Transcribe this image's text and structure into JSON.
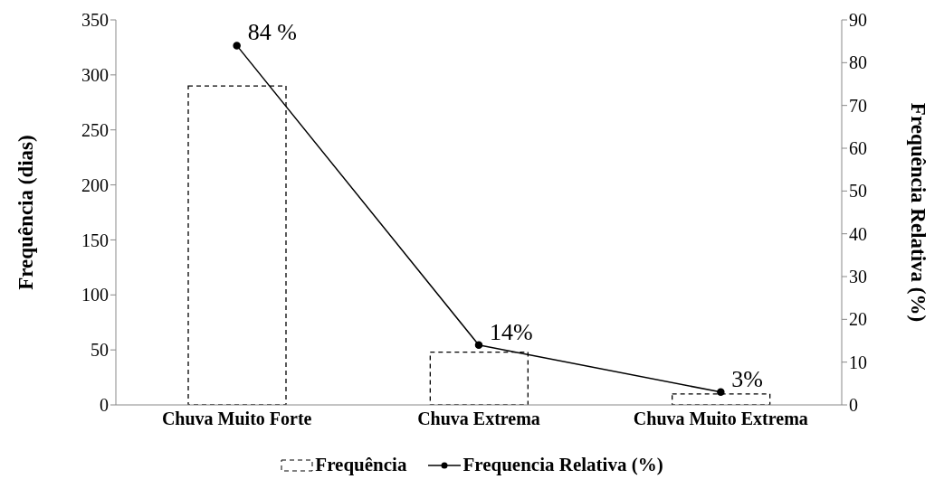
{
  "chart_data": {
    "type": "bar",
    "categories": [
      "Chuva Muito Forte",
      "Chuva Extrema",
      "Chuva Muito Extrema"
    ],
    "series": [
      {
        "name": "Frequência",
        "color": "#000000",
        "line_style": "dashed",
        "values": [
          290,
          48,
          10
        ]
      },
      {
        "name": "Frequencia Relativa (%)",
        "type": "line",
        "axis": "y2",
        "color": "#000000",
        "line_style": "solid",
        "marker": "circle",
        "values": [
          84,
          14,
          3
        ],
        "value_labels": [
          "84 %",
          "14%",
          "3%"
        ]
      }
    ],
    "ylabel": "Frequência (dias)",
    "y2label": "Frequência Relativa (%)",
    "ylim": [
      0,
      350
    ],
    "yticks": [
      0,
      50,
      100,
      150,
      200,
      250,
      300,
      350
    ],
    "y2lim": [
      0,
      90
    ],
    "y2ticks": [
      0,
      10,
      20,
      30,
      40,
      50,
      60,
      70,
      80,
      90
    ],
    "grid": false,
    "legend": "bottom"
  }
}
